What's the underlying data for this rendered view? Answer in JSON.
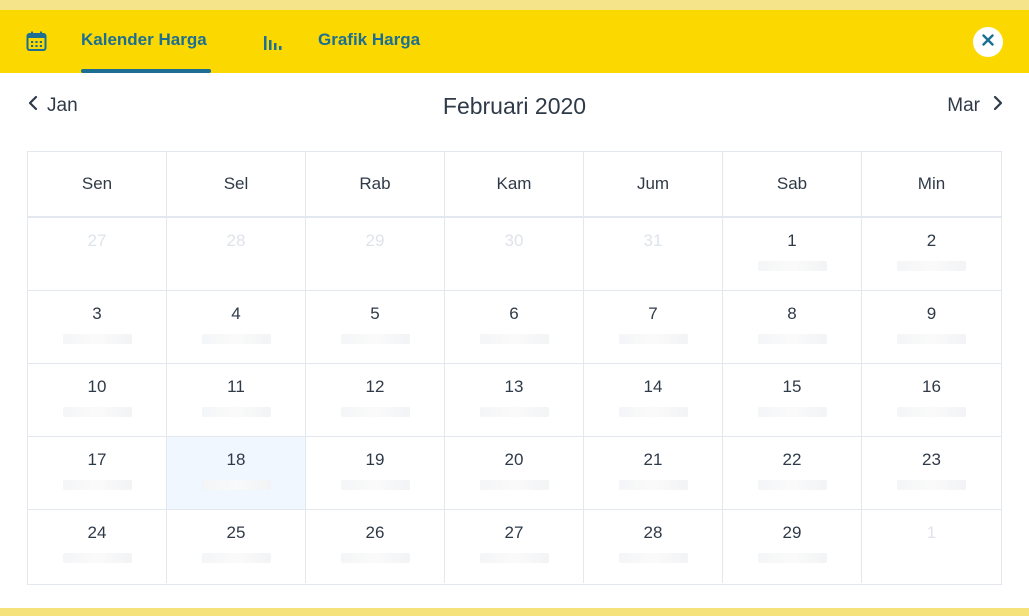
{
  "tabs": [
    {
      "label": "Kalender Harga",
      "icon": "calendar-icon",
      "active": true
    },
    {
      "label": "Grafik Harga",
      "icon": "bar-chart-icon",
      "active": false
    }
  ],
  "close_icon": "close-icon",
  "nav": {
    "prev_label": "Jan",
    "next_label": "Mar",
    "title": "Februari 2020"
  },
  "weekdays": [
    "Sen",
    "Sel",
    "Rab",
    "Kam",
    "Jum",
    "Sab",
    "Min"
  ],
  "days": [
    {
      "num": "27",
      "muted": true
    },
    {
      "num": "28",
      "muted": true
    },
    {
      "num": "29",
      "muted": true
    },
    {
      "num": "30",
      "muted": true
    },
    {
      "num": "31",
      "muted": true
    },
    {
      "num": "1",
      "muted": false
    },
    {
      "num": "2",
      "muted": false
    },
    {
      "num": "3",
      "muted": false
    },
    {
      "num": "4",
      "muted": false
    },
    {
      "num": "5",
      "muted": false
    },
    {
      "num": "6",
      "muted": false
    },
    {
      "num": "7",
      "muted": false
    },
    {
      "num": "8",
      "muted": false
    },
    {
      "num": "9",
      "muted": false
    },
    {
      "num": "10",
      "muted": false
    },
    {
      "num": "11",
      "muted": false
    },
    {
      "num": "12",
      "muted": false
    },
    {
      "num": "13",
      "muted": false
    },
    {
      "num": "14",
      "muted": false
    },
    {
      "num": "15",
      "muted": false
    },
    {
      "num": "16",
      "muted": false
    },
    {
      "num": "17",
      "muted": false
    },
    {
      "num": "18",
      "muted": false,
      "selected": true
    },
    {
      "num": "19",
      "muted": false
    },
    {
      "num": "20",
      "muted": false
    },
    {
      "num": "21",
      "muted": false
    },
    {
      "num": "22",
      "muted": false
    },
    {
      "num": "23",
      "muted": false
    },
    {
      "num": "24",
      "muted": false
    },
    {
      "num": "25",
      "muted": false
    },
    {
      "num": "26",
      "muted": false
    },
    {
      "num": "27",
      "muted": false
    },
    {
      "num": "28",
      "muted": false
    },
    {
      "num": "29",
      "muted": false
    },
    {
      "num": "1",
      "muted": true
    }
  ],
  "colors": {
    "header_bg": "#fbd900",
    "accent": "#1c6f92",
    "selected_day_bg": "#f1f7ff",
    "muted_text": "#dfe3ea"
  }
}
